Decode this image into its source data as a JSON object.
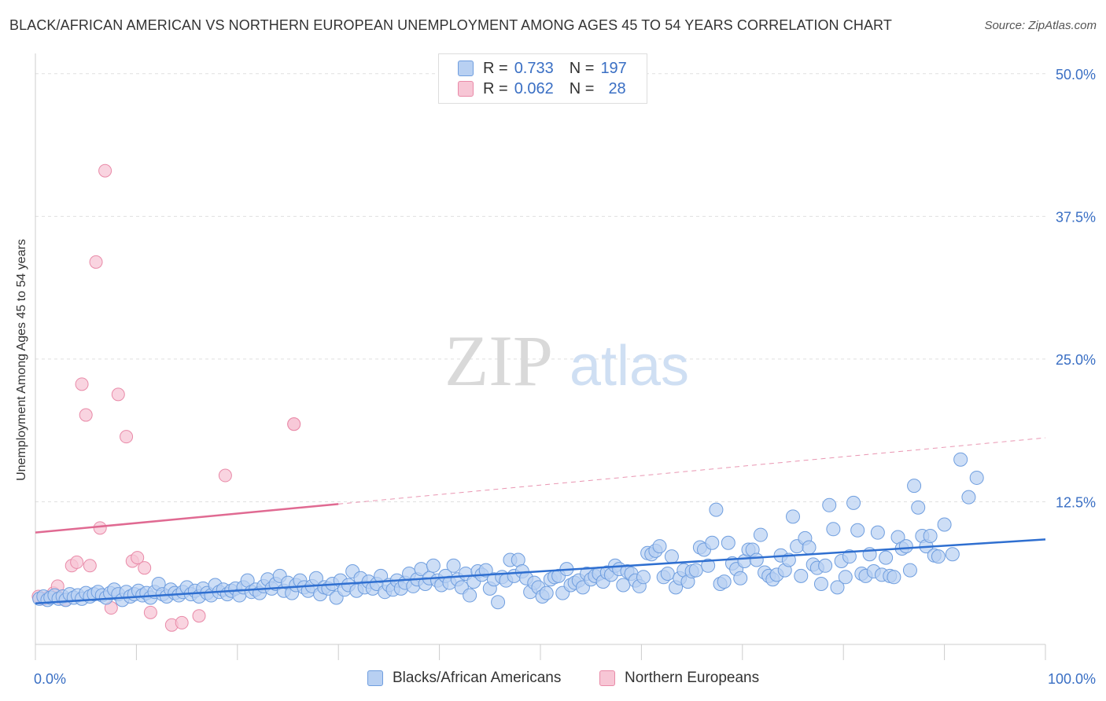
{
  "title": "BLACK/AFRICAN AMERICAN VS NORTHERN EUROPEAN UNEMPLOYMENT AMONG AGES 45 TO 54 YEARS CORRELATION CHART",
  "source": "Source: ZipAtlas.com",
  "watermark": {
    "zip": "ZIP",
    "atlas": "atlas"
  },
  "colors": {
    "blue_fill": "#b8d0f2",
    "blue_stroke": "#6f9edf",
    "blue_line": "#2f6fd0",
    "pink_fill": "#f7c6d5",
    "pink_stroke": "#e98aa8",
    "pink_line": "#e06a92",
    "axis_label": "#3a6fc4",
    "grid": "#e0e0e0"
  },
  "legend": {
    "rows": [
      {
        "r_label": "R =",
        "r_value": "0.733",
        "n_label": "N =",
        "n_value": "197"
      },
      {
        "r_label": "R =",
        "r_value": "0.062",
        "n_label": "N =",
        "n_value": "28"
      }
    ]
  },
  "chart_data": {
    "type": "scatter",
    "title": "BLACK/AFRICAN AMERICAN VS NORTHERN EUROPEAN UNEMPLOYMENT AMONG AGES 45 TO 54 YEARS CORRELATION CHART",
    "xlabel": "",
    "ylabel": "Unemployment Among Ages 45 to 54 years",
    "xlim": [
      0,
      100
    ],
    "ylim": [
      0,
      51.5
    ],
    "x_tick_labels": [
      {
        "value": 0,
        "label": "0.0%"
      },
      {
        "value": 100,
        "label": "100.0%"
      }
    ],
    "y_tick_labels": [
      {
        "value": 12.5,
        "label": "12.5%"
      },
      {
        "value": 25.0,
        "label": "25.0%"
      },
      {
        "value": 37.5,
        "label": "37.5%"
      },
      {
        "value": 50.0,
        "label": "50.0%"
      }
    ],
    "grid": true,
    "legend_position": "top-center",
    "series": [
      {
        "name": "Blacks/African Americans",
        "color": "#b8d0f2",
        "trend": {
          "x0": 0,
          "y0": 3.6,
          "x1": 100,
          "y1": 9.2
        },
        "points": [
          [
            0.4,
            4.0
          ],
          [
            0.8,
            4.2
          ],
          [
            1.2,
            3.9
          ],
          [
            1.5,
            4.1
          ],
          [
            1.9,
            4.3
          ],
          [
            2.3,
            4.0
          ],
          [
            2.7,
            4.2
          ],
          [
            3.0,
            3.9
          ],
          [
            3.4,
            4.4
          ],
          [
            3.8,
            4.1
          ],
          [
            4.2,
            4.3
          ],
          [
            4.6,
            4.0
          ],
          [
            5.0,
            4.5
          ],
          [
            5.4,
            4.2
          ],
          [
            5.8,
            4.4
          ],
          [
            6.2,
            4.6
          ],
          [
            6.6,
            4.3
          ],
          [
            7.0,
            4.1
          ],
          [
            7.4,
            4.5
          ],
          [
            7.8,
            4.8
          ],
          [
            8.2,
            4.4
          ],
          [
            8.6,
            3.9
          ],
          [
            9.0,
            4.6
          ],
          [
            9.4,
            4.2
          ],
          [
            9.8,
            4.4
          ],
          [
            10.2,
            4.7
          ],
          [
            10.6,
            4.3
          ],
          [
            11.0,
            4.5
          ],
          [
            11.4,
            4.1
          ],
          [
            11.8,
            4.6
          ],
          [
            12.2,
            5.3
          ],
          [
            12.6,
            4.4
          ],
          [
            13.0,
            4.2
          ],
          [
            13.4,
            4.8
          ],
          [
            13.8,
            4.5
          ],
          [
            14.2,
            4.3
          ],
          [
            14.6,
            4.6
          ],
          [
            15.0,
            5.0
          ],
          [
            15.4,
            4.4
          ],
          [
            15.8,
            4.7
          ],
          [
            16.2,
            4.2
          ],
          [
            16.6,
            4.9
          ],
          [
            17.0,
            4.5
          ],
          [
            17.4,
            4.3
          ],
          [
            17.8,
            5.2
          ],
          [
            18.2,
            4.6
          ],
          [
            18.6,
            4.8
          ],
          [
            19.0,
            4.4
          ],
          [
            19.4,
            4.7
          ],
          [
            19.8,
            4.9
          ],
          [
            20.2,
            4.3
          ],
          [
            20.6,
            5.0
          ],
          [
            21.0,
            5.6
          ],
          [
            21.4,
            4.6
          ],
          [
            21.8,
            4.8
          ],
          [
            22.2,
            4.5
          ],
          [
            22.6,
            5.1
          ],
          [
            23.0,
            5.7
          ],
          [
            23.4,
            4.9
          ],
          [
            23.8,
            5.3
          ],
          [
            24.2,
            6.0
          ],
          [
            24.6,
            4.7
          ],
          [
            25.0,
            5.4
          ],
          [
            25.4,
            4.5
          ],
          [
            25.8,
            5.2
          ],
          [
            26.2,
            5.6
          ],
          [
            26.6,
            5.0
          ],
          [
            27.0,
            4.7
          ],
          [
            27.4,
            5.1
          ],
          [
            27.8,
            5.8
          ],
          [
            28.2,
            4.4
          ],
          [
            28.6,
            5.0
          ],
          [
            29.0,
            4.9
          ],
          [
            29.4,
            5.3
          ],
          [
            29.8,
            4.1
          ],
          [
            30.2,
            5.6
          ],
          [
            30.6,
            4.8
          ],
          [
            31.0,
            5.2
          ],
          [
            31.4,
            6.4
          ],
          [
            31.8,
            4.7
          ],
          [
            32.2,
            5.8
          ],
          [
            32.6,
            5.0
          ],
          [
            33.0,
            5.5
          ],
          [
            33.4,
            4.9
          ],
          [
            33.8,
            5.3
          ],
          [
            34.2,
            6.0
          ],
          [
            34.6,
            4.6
          ],
          [
            35.0,
            5.2
          ],
          [
            35.4,
            4.8
          ],
          [
            35.8,
            5.6
          ],
          [
            36.2,
            4.9
          ],
          [
            36.6,
            5.4
          ],
          [
            37.0,
            6.2
          ],
          [
            37.4,
            5.1
          ],
          [
            37.8,
            5.7
          ],
          [
            38.2,
            6.6
          ],
          [
            38.6,
            5.3
          ],
          [
            39.0,
            5.8
          ],
          [
            39.4,
            6.9
          ],
          [
            39.8,
            5.6
          ],
          [
            40.2,
            5.2
          ],
          [
            40.6,
            6.0
          ],
          [
            41.0,
            5.4
          ],
          [
            41.4,
            6.9
          ],
          [
            41.8,
            5.7
          ],
          [
            42.2,
            5.0
          ],
          [
            42.6,
            6.2
          ],
          [
            43.0,
            4.3
          ],
          [
            43.4,
            5.5
          ],
          [
            43.8,
            6.4
          ],
          [
            44.2,
            6.1
          ],
          [
            44.6,
            6.5
          ],
          [
            45.0,
            4.9
          ],
          [
            45.4,
            5.7
          ],
          [
            45.8,
            3.7
          ],
          [
            46.2,
            5.9
          ],
          [
            46.6,
            5.6
          ],
          [
            47.0,
            7.4
          ],
          [
            47.4,
            6.0
          ],
          [
            47.8,
            7.4
          ],
          [
            48.2,
            6.4
          ],
          [
            48.6,
            5.8
          ],
          [
            49.0,
            4.6
          ],
          [
            49.4,
            5.4
          ],
          [
            49.8,
            5.0
          ],
          [
            50.2,
            4.2
          ],
          [
            50.6,
            4.5
          ],
          [
            51.0,
            5.7
          ],
          [
            51.4,
            5.9
          ],
          [
            51.8,
            6.0
          ],
          [
            52.2,
            4.5
          ],
          [
            52.6,
            6.6
          ],
          [
            53.0,
            5.2
          ],
          [
            53.4,
            5.4
          ],
          [
            53.8,
            5.6
          ],
          [
            54.2,
            5.0
          ],
          [
            54.6,
            6.2
          ],
          [
            55.0,
            5.7
          ],
          [
            55.4,
            6.0
          ],
          [
            55.8,
            6.2
          ],
          [
            56.2,
            5.5
          ],
          [
            56.6,
            6.3
          ],
          [
            57.0,
            6.1
          ],
          [
            57.4,
            6.9
          ],
          [
            57.8,
            6.6
          ],
          [
            58.2,
            5.2
          ],
          [
            58.6,
            6.4
          ],
          [
            59.0,
            6.2
          ],
          [
            59.4,
            5.6
          ],
          [
            59.8,
            5.1
          ],
          [
            60.2,
            5.9
          ],
          [
            60.6,
            8.0
          ],
          [
            61.0,
            7.9
          ],
          [
            61.4,
            8.2
          ],
          [
            61.8,
            8.6
          ],
          [
            62.2,
            5.9
          ],
          [
            62.6,
            6.2
          ],
          [
            63.0,
            7.7
          ],
          [
            63.4,
            5.0
          ],
          [
            63.8,
            5.8
          ],
          [
            64.2,
            6.5
          ],
          [
            64.6,
            5.5
          ],
          [
            65.0,
            6.4
          ],
          [
            65.4,
            6.5
          ],
          [
            65.8,
            8.5
          ],
          [
            66.2,
            8.3
          ],
          [
            66.6,
            6.9
          ],
          [
            67.0,
            8.9
          ],
          [
            67.4,
            11.8
          ],
          [
            67.8,
            5.3
          ],
          [
            68.2,
            5.5
          ],
          [
            68.6,
            8.9
          ],
          [
            69.0,
            7.1
          ],
          [
            69.4,
            6.6
          ],
          [
            69.8,
            5.8
          ],
          [
            70.2,
            7.3
          ],
          [
            70.6,
            8.3
          ],
          [
            71.0,
            8.3
          ],
          [
            71.4,
            7.4
          ],
          [
            71.8,
            9.6
          ],
          [
            72.2,
            6.3
          ],
          [
            72.6,
            6.0
          ],
          [
            73.0,
            5.7
          ],
          [
            73.4,
            6.1
          ],
          [
            73.8,
            7.8
          ],
          [
            74.2,
            6.5
          ],
          [
            74.6,
            7.4
          ],
          [
            75.0,
            11.2
          ],
          [
            75.4,
            8.6
          ],
          [
            75.8,
            6.0
          ],
          [
            76.2,
            9.3
          ],
          [
            76.6,
            8.5
          ],
          [
            77.0,
            7.0
          ],
          [
            77.4,
            6.7
          ],
          [
            77.8,
            5.3
          ],
          [
            78.2,
            6.9
          ],
          [
            78.6,
            12.2
          ],
          [
            79.0,
            10.1
          ],
          [
            79.4,
            5.0
          ],
          [
            79.8,
            7.3
          ],
          [
            80.2,
            5.9
          ],
          [
            80.6,
            7.7
          ],
          [
            81.0,
            12.4
          ],
          [
            81.4,
            10.0
          ],
          [
            81.8,
            6.2
          ],
          [
            82.2,
            6.0
          ],
          [
            82.6,
            7.9
          ],
          [
            83.0,
            6.4
          ],
          [
            83.4,
            9.8
          ],
          [
            83.8,
            6.1
          ],
          [
            84.2,
            7.6
          ],
          [
            84.6,
            6.0
          ],
          [
            85.0,
            5.9
          ],
          [
            85.4,
            9.4
          ],
          [
            85.8,
            8.4
          ],
          [
            86.2,
            8.6
          ],
          [
            86.6,
            6.5
          ],
          [
            87.0,
            13.9
          ],
          [
            87.4,
            12.0
          ],
          [
            87.8,
            9.5
          ],
          [
            88.2,
            8.6
          ],
          [
            88.6,
            9.5
          ],
          [
            89.0,
            7.8
          ],
          [
            89.4,
            7.7
          ],
          [
            90.0,
            10.5
          ],
          [
            90.8,
            7.9
          ],
          [
            91.6,
            16.2
          ],
          [
            92.4,
            12.9
          ],
          [
            93.2,
            14.6
          ]
        ]
      },
      {
        "name": "Northern Europeans",
        "color": "#f7c6d5",
        "trend": {
          "x0": 0,
          "y0": 9.8,
          "x1": 30,
          "y1": 12.3,
          "dash_x1": 100,
          "dash_y1": 18.1
        },
        "points": [
          [
            0.3,
            4.2
          ],
          [
            0.8,
            4.0
          ],
          [
            1.2,
            4.1
          ],
          [
            1.8,
            4.5
          ],
          [
            2.2,
            5.1
          ],
          [
            2.6,
            4.0
          ],
          [
            3.0,
            3.9
          ],
          [
            3.6,
            6.9
          ],
          [
            4.1,
            7.2
          ],
          [
            4.6,
            22.8
          ],
          [
            5.0,
            20.1
          ],
          [
            5.4,
            6.9
          ],
          [
            6.0,
            33.5
          ],
          [
            6.4,
            10.2
          ],
          [
            6.9,
            41.5
          ],
          [
            7.5,
            3.2
          ],
          [
            8.2,
            21.9
          ],
          [
            9.0,
            18.2
          ],
          [
            9.6,
            7.3
          ],
          [
            10.1,
            7.6
          ],
          [
            10.8,
            6.7
          ],
          [
            11.4,
            2.8
          ],
          [
            13.5,
            1.7
          ],
          [
            14.5,
            1.9
          ],
          [
            16.2,
            2.5
          ],
          [
            18.8,
            14.8
          ],
          [
            25.6,
            19.3
          ],
          [
            25.6,
            19.3
          ]
        ]
      }
    ]
  },
  "bottom_legend": [
    {
      "label": "Blacks/African Americans"
    },
    {
      "label": "Northern Europeans"
    }
  ]
}
